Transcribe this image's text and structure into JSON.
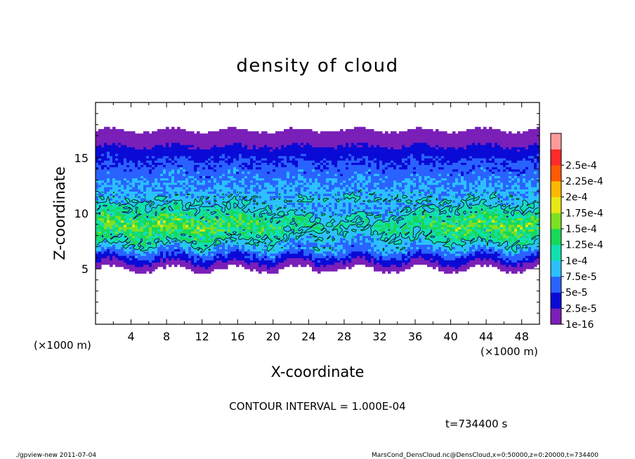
{
  "chart_data": {
    "type": "heatmap",
    "title": "density of cloud",
    "xlabel": "X-coordinate",
    "ylabel": "Z-coordinate",
    "x_unit_left": "(×1000 m)",
    "x_unit_right": "(×1000 m)",
    "xlim": [
      0,
      50
    ],
    "ylim": [
      0,
      20
    ],
    "xticks": [
      4,
      8,
      12,
      16,
      20,
      24,
      28,
      32,
      36,
      40,
      44,
      48
    ],
    "yticks": [
      5,
      10,
      15
    ],
    "colorbar": {
      "levels": [
        "1e-16",
        "2.5e-5",
        "5e-5",
        "7.5e-5",
        "1e-4",
        "1.25e-4",
        "1.5e-4",
        "1.75e-4",
        "2e-4",
        "2.25e-4",
        "2.5e-4"
      ],
      "colors": [
        "#7a1fb8",
        "#0a0ad6",
        "#2a62ff",
        "#2cc0ff",
        "#10e0b0",
        "#18d858",
        "#7ee020",
        "#e8e814",
        "#ffb800",
        "#ff5a00",
        "#ff2a2a",
        "#ff9a9a"
      ]
    },
    "profile": [
      {
        "z": 5.0,
        "value": 1e-16
      },
      {
        "z": 5.6,
        "value": 2.5e-05
      },
      {
        "z": 6.5,
        "value": 6.5e-05
      },
      {
        "z": 7.5,
        "value": 0.00011
      },
      {
        "z": 9.0,
        "value": 0.00015
      },
      {
        "z": 10.5,
        "value": 0.000105
      },
      {
        "z": 12.0,
        "value": 8e-05
      },
      {
        "z": 14.0,
        "value": 6e-05
      },
      {
        "z": 16.0,
        "value": 3e-05
      },
      {
        "z": 16.5,
        "value": 1e-05
      },
      {
        "z": 17.5,
        "value": 1e-16
      }
    ],
    "contour_interval": "CONTOUR INTERVAL = 1.000E-04",
    "contour_levels": [
      0.0001
    ],
    "time": "t=734400 s"
  },
  "footer": {
    "left": "./gpview-new   2011-07-04",
    "right": "MarsCond_DensCloud.nc@DensCloud,x=0:50000,z=0:20000,t=734400"
  }
}
